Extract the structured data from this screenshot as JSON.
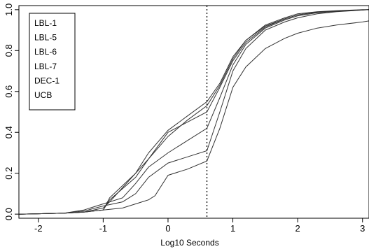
{
  "chart_data": {
    "type": "line",
    "title": "",
    "xlabel": "Log10 Seconds",
    "ylabel": "",
    "xlim": [
      -2.3,
      3.1
    ],
    "ylim": [
      -0.02,
      1.02
    ],
    "xticks": [
      -2,
      -1,
      0,
      1,
      2,
      3
    ],
    "xtick_labels": [
      "-2",
      "-1",
      "0",
      "1",
      "2",
      "3"
    ],
    "yticks": [
      0.0,
      0.2,
      0.4,
      0.6,
      0.8,
      1.0
    ],
    "ytick_labels": [
      "0.0",
      "0.2",
      "0.4",
      "0.6",
      "0.8",
      "1.0"
    ],
    "grid": false,
    "legend_position": "top-left",
    "reference_line": {
      "x": 0.6,
      "style": "dotted"
    },
    "series": [
      {
        "name": "LBL-1",
        "x": [
          -2.3,
          -1.6,
          -1.3,
          -1.0,
          -0.9,
          -0.5,
          -0.3,
          0.0,
          0.3,
          0.6,
          0.8,
          1.0,
          1.2,
          1.5,
          1.8,
          2.0,
          2.3,
          2.6,
          3.0,
          3.1
        ],
        "y": [
          0.0,
          0.005,
          0.01,
          0.02,
          0.08,
          0.2,
          0.3,
          0.41,
          0.48,
          0.55,
          0.64,
          0.77,
          0.85,
          0.925,
          0.96,
          0.98,
          0.99,
          0.995,
          1.0,
          1.0
        ]
      },
      {
        "name": "LBL-5",
        "x": [
          -2.3,
          -1.6,
          -1.3,
          -1.0,
          -0.9,
          -0.5,
          -0.3,
          0.0,
          0.3,
          0.6,
          0.8,
          1.0,
          1.2,
          1.5,
          1.8,
          2.0,
          2.3,
          2.6,
          3.0,
          3.1
        ],
        "y": [
          0.0,
          0.005,
          0.01,
          0.02,
          0.07,
          0.18,
          0.27,
          0.38,
          0.46,
          0.53,
          0.63,
          0.76,
          0.85,
          0.92,
          0.955,
          0.975,
          0.988,
          0.994,
          0.999,
          1.0
        ]
      },
      {
        "name": "LBL-6",
        "x": [
          -2.3,
          -1.6,
          -1.3,
          -1.0,
          -0.7,
          -0.5,
          -0.3,
          0.0,
          0.3,
          0.6,
          0.8,
          1.0,
          1.2,
          1.5,
          1.8,
          2.0,
          2.3,
          2.6,
          3.0,
          3.1
        ],
        "y": [
          0.0,
          0.005,
          0.02,
          0.05,
          0.08,
          0.15,
          0.23,
          0.3,
          0.36,
          0.42,
          0.57,
          0.73,
          0.83,
          0.91,
          0.95,
          0.97,
          0.985,
          0.992,
          0.998,
          1.0
        ]
      },
      {
        "name": "LBL-7",
        "x": [
          -2.3,
          -1.6,
          -1.3,
          -1.0,
          -0.7,
          -0.5,
          -0.3,
          0.0,
          0.3,
          0.6,
          0.8,
          1.0,
          1.2,
          1.5,
          1.8,
          2.0,
          2.3,
          2.6,
          3.0,
          3.1
        ],
        "y": [
          0.0,
          0.005,
          0.015,
          0.04,
          0.06,
          0.1,
          0.18,
          0.25,
          0.28,
          0.31,
          0.5,
          0.7,
          0.81,
          0.9,
          0.94,
          0.96,
          0.98,
          0.99,
          0.998,
          1.0
        ]
      },
      {
        "name": "DEC-1",
        "x": [
          -2.3,
          -1.6,
          -1.3,
          -1.0,
          -0.7,
          -0.4,
          -0.3,
          -0.2,
          0.0,
          0.3,
          0.6,
          0.8,
          1.0,
          1.2,
          1.5,
          1.8,
          2.0,
          2.3,
          2.6,
          3.0,
          3.1
        ],
        "y": [
          0.0,
          0.005,
          0.01,
          0.02,
          0.03,
          0.06,
          0.07,
          0.09,
          0.19,
          0.22,
          0.26,
          0.42,
          0.62,
          0.72,
          0.81,
          0.86,
          0.885,
          0.91,
          0.925,
          0.94,
          0.945
        ]
      },
      {
        "name": "UCB",
        "x": [
          -2.3,
          -1.6,
          -1.3,
          -1.0,
          -0.9,
          -0.5,
          -0.3,
          0.0,
          0.3,
          0.6,
          0.8,
          1.0,
          1.2,
          1.5,
          1.8,
          2.0,
          2.3,
          2.6,
          3.0,
          3.1
        ],
        "y": [
          0.0,
          0.005,
          0.01,
          0.03,
          0.06,
          0.2,
          0.27,
          0.4,
          0.45,
          0.5,
          0.62,
          0.75,
          0.84,
          0.915,
          0.955,
          0.975,
          0.988,
          0.994,
          0.999,
          1.0
        ]
      }
    ]
  }
}
